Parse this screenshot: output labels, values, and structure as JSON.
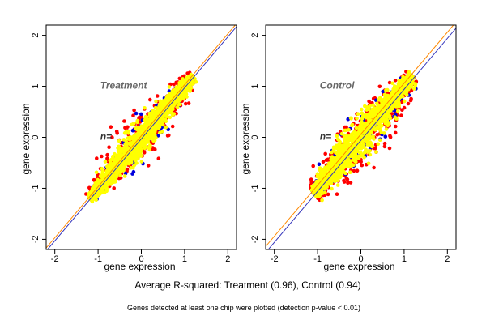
{
  "figure": {
    "caption": "Average R-squared: Treatment (0.96), Control (0.94)",
    "footnote": "Genes detected at least one chip were plotted (detection p-value < 0.01)"
  },
  "colors": {
    "point_colors": [
      "#ff0000",
      "#0000dd",
      "#ffff00"
    ],
    "line_orange": "#ff8800",
    "line_blue": "#3333bb"
  },
  "chart_data": [
    {
      "type": "scatter",
      "title": "Treatment",
      "n_label": "n=",
      "xlabel": "gene expression",
      "ylabel": "gene expression",
      "xlim": [
        -2.2,
        2.2
      ],
      "ylim": [
        -2.2,
        2.2
      ],
      "x_ticks": [
        -2,
        -1,
        0,
        1,
        2
      ],
      "y_ticks": [
        -2,
        -1,
        0,
        1,
        2
      ],
      "grid": false,
      "r_squared": 0.96,
      "core_range": [
        -1.2,
        1.2
      ],
      "series": [
        {
          "color": "#ff0000",
          "spread": 0.16,
          "count": 380
        },
        {
          "color": "#0000dd",
          "spread": 0.13,
          "count": 140
        },
        {
          "color": "#ffff00",
          "spread": 0.1,
          "count": 1300
        }
      ],
      "reference_lines": [
        {
          "color": "#ff8800",
          "intercept": 0.03,
          "slope": 1.0
        },
        {
          "color": "#3333bb",
          "intercept": -0.03,
          "slope": 1.0
        }
      ]
    },
    {
      "type": "scatter",
      "title": "Control",
      "n_label": "n=",
      "xlabel": "gene expression",
      "ylabel": "gene expression",
      "xlim": [
        -2.2,
        2.2
      ],
      "ylim": [
        -2.2,
        2.2
      ],
      "x_ticks": [
        -2,
        -1,
        0,
        1,
        2
      ],
      "y_ticks": [
        -2,
        -1,
        0,
        1,
        2
      ],
      "grid": false,
      "r_squared": 0.94,
      "core_range": [
        -1.1,
        1.2
      ],
      "series": [
        {
          "color": "#ff0000",
          "spread": 0.2,
          "count": 420
        },
        {
          "color": "#0000dd",
          "spread": 0.16,
          "count": 160
        },
        {
          "color": "#ffff00",
          "spread": 0.12,
          "count": 1300
        }
      ],
      "reference_lines": [
        {
          "color": "#ff8800",
          "intercept": 0.06,
          "slope": 1.0
        },
        {
          "color": "#3333bb",
          "intercept": -0.06,
          "slope": 1.0
        }
      ]
    }
  ]
}
